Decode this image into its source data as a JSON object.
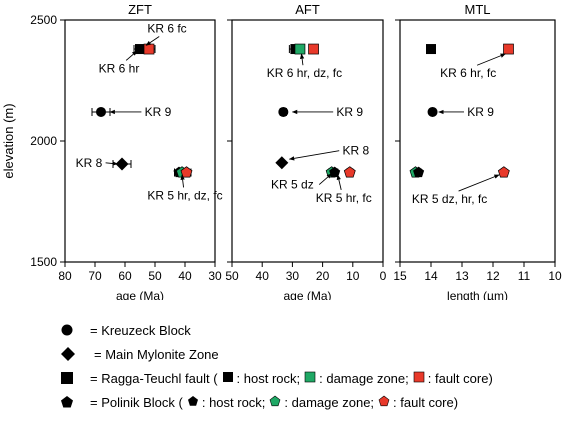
{
  "chart_data": [
    {
      "type": "scatter",
      "title": "ZFT",
      "xlabel": "age (Ma)",
      "ylabel": "elevation (m)",
      "xlim": [
        80,
        30
      ],
      "ylim": [
        1500,
        2500
      ],
      "xticks": [
        "80",
        "70",
        "60",
        "50",
        "40",
        "30"
      ],
      "yticks": [
        "1500",
        "2000",
        "2500"
      ],
      "points": [
        {
          "id": "kr6-hr",
          "x": 55,
          "y": 2380,
          "xerr": 2,
          "shape": "square",
          "color": "#000000"
        },
        {
          "id": "kr6-fc",
          "x": 52,
          "y": 2380,
          "xerr": 2,
          "shape": "square",
          "color": "#e8392a"
        },
        {
          "id": "kr9",
          "x": 68,
          "y": 2120,
          "xerr": 3,
          "shape": "circle",
          "color": "#000000"
        },
        {
          "id": "kr8",
          "x": 61,
          "y": 1905,
          "xerr": 3,
          "shape": "diamond",
          "color": "#000000"
        },
        {
          "id": "kr5-hr",
          "x": 42,
          "y": 1870,
          "xerr": 1.5,
          "shape": "pentagon",
          "color": "#000000"
        },
        {
          "id": "kr5-dz",
          "x": 41,
          "y": 1870,
          "xerr": 1.5,
          "shape": "pentagon",
          "color": "#1fa865"
        },
        {
          "id": "kr5-fc",
          "x": 39.5,
          "y": 1870,
          "xerr": 1.5,
          "shape": "pentagon",
          "color": "#e8392a"
        }
      ],
      "annotations": [
        {
          "text": "KR 6 fc",
          "tx": 46,
          "ty": 2465,
          "ax": 53,
          "ay": 2395
        },
        {
          "text": "KR 6 hr",
          "tx": 62,
          "ty": 2300,
          "ax": 56,
          "ay": 2372
        },
        {
          "text": "KR 9",
          "tx": 49,
          "ty": 2120,
          "ax": 65,
          "ay": 2120
        },
        {
          "text": "KR 8",
          "tx": 72,
          "ty": 1910,
          "ax": 62.5,
          "ay": 1905
        },
        {
          "text": "KR 5 hr, dz, fc",
          "tx": 40,
          "ty": 1775,
          "ax": 41,
          "ay": 1860
        }
      ]
    },
    {
      "type": "scatter",
      "title": "AFT",
      "xlabel": "age (Ma)",
      "xlim": [
        50,
        0
      ],
      "ylim": [
        1500,
        2500
      ],
      "xticks": [
        "50",
        "40",
        "30",
        "20",
        "10",
        "0"
      ],
      "points": [
        {
          "id": "kr6-hr",
          "x": 29,
          "y": 2380,
          "xerr": 2,
          "shape": "square",
          "color": "#000000"
        },
        {
          "id": "kr6-dz",
          "x": 27.5,
          "y": 2380,
          "xerr": 1.5,
          "shape": "square",
          "color": "#1fa865"
        },
        {
          "id": "kr6-fc",
          "x": 23,
          "y": 2380,
          "xerr": 1.5,
          "shape": "square",
          "color": "#e8392a"
        },
        {
          "id": "kr9",
          "x": 33,
          "y": 2120,
          "xerr": 1,
          "shape": "circle",
          "color": "#000000"
        },
        {
          "id": "kr8",
          "x": 33.5,
          "y": 1910,
          "xerr": 0,
          "shape": "diamond",
          "color": "#000000"
        },
        {
          "id": "kr5-dz",
          "x": 17,
          "y": 1870,
          "xerr": 1,
          "shape": "pentagon",
          "color": "#1fa865"
        },
        {
          "id": "kr5-hr",
          "x": 16,
          "y": 1870,
          "xerr": 1,
          "shape": "pentagon",
          "color": "#000000"
        },
        {
          "id": "kr5-fc",
          "x": 11,
          "y": 1870,
          "xerr": 1,
          "shape": "pentagon",
          "color": "#e8392a"
        }
      ],
      "annotations": [
        {
          "text": "KR 6 hr, dz, fc",
          "tx": 26,
          "ty": 2280,
          "ax": 27,
          "ay": 2360
        },
        {
          "text": "KR 9",
          "tx": 11,
          "ty": 2120,
          "ax": 30,
          "ay": 2120
        },
        {
          "text": "KR 8",
          "tx": 9,
          "ty": 1960,
          "ax": 31,
          "ay": 1925
        },
        {
          "text": "KR 5 dz",
          "tx": 30,
          "ty": 1820,
          "ax": 17,
          "ay": 1865
        },
        {
          "text": "KR 5 hr,  fc",
          "tx": 13,
          "ty": 1765,
          "ax": 15,
          "ay": 1860
        }
      ]
    },
    {
      "type": "scatter",
      "title": "MTL",
      "xlabel": "length (µm)",
      "xlim": [
        15,
        10
      ],
      "ylim": [
        1500,
        2500
      ],
      "xticks": [
        "15",
        "14",
        "13",
        "12",
        "11",
        "10"
      ],
      "points": [
        {
          "id": "kr6-hr",
          "x": 14,
          "y": 2380,
          "xerr": 0.1,
          "shape": "square",
          "color": "#000000"
        },
        {
          "id": "kr6-fc",
          "x": 11.5,
          "y": 2380,
          "xerr": 0.1,
          "shape": "square",
          "color": "#e8392a"
        },
        {
          "id": "kr9",
          "x": 13.95,
          "y": 2120,
          "xerr": 0.08,
          "shape": "circle",
          "color": "#000000"
        },
        {
          "id": "kr5-dz",
          "x": 14.5,
          "y": 1870,
          "xerr": 0.08,
          "shape": "pentagon",
          "color": "#1fa865"
        },
        {
          "id": "kr5-hr",
          "x": 14.4,
          "y": 1870,
          "xerr": 0.08,
          "shape": "pentagon",
          "color": "#000000"
        },
        {
          "id": "kr5-fc",
          "x": 11.65,
          "y": 1870,
          "xerr": 0.08,
          "shape": "pentagon",
          "color": "#e8392a"
        }
      ],
      "annotations": [
        {
          "text": "KR 6 hr,  fc",
          "tx": 12.8,
          "ty": 2280,
          "ax": 11.6,
          "ay": 2360
        },
        {
          "text": "KR 9",
          "tx": 12.4,
          "ty": 2120,
          "ax": 13.75,
          "ay": 2120
        },
        {
          "text": "KR 5 dz, hr,  fc",
          "tx": 13.4,
          "ty": 1760,
          "ax": 11.8,
          "ay": 1860
        }
      ]
    }
  ],
  "legend": {
    "kreuzeck": "= Kreuzeck Block",
    "mylonite": "= Main Mylonite Zone",
    "ragga_prefix": "= Ragga-Teuchl fault (",
    "ragga_host": ": host rock;",
    "ragga_damage": ": damage zone;",
    "ragga_core": ": fault core)",
    "polinik_prefix": "= Polinik Block (",
    "polinik_host": ": host rock;",
    "polinik_damage": ": damage zone;",
    "polinik_core": ": fault core)"
  },
  "colors": {
    "host_rock": "#000000",
    "damage_zone": "#1fa865",
    "fault_core": "#e8392a"
  }
}
